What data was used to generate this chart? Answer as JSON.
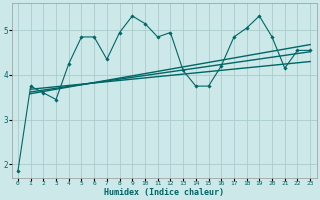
{
  "title": "",
  "xlabel": "Humidex (Indice chaleur)",
  "bg_color": "#cce8e8",
  "grid_color": "#aacccc",
  "line_color": "#006666",
  "xlim": [
    -0.5,
    23.5
  ],
  "ylim": [
    1.7,
    5.6
  ],
  "yticks": [
    2,
    3,
    4,
    5
  ],
  "xticks": [
    0,
    1,
    2,
    3,
    4,
    5,
    6,
    7,
    8,
    9,
    10,
    11,
    12,
    13,
    14,
    15,
    16,
    17,
    18,
    19,
    20,
    21,
    22,
    23
  ],
  "series1_x": [
    0,
    1,
    2,
    3,
    4,
    5,
    6,
    7,
    8,
    9,
    10,
    11,
    12,
    13,
    14,
    15,
    16,
    17,
    18,
    19,
    20,
    21,
    22,
    23
  ],
  "series1_y": [
    1.85,
    3.75,
    3.6,
    3.45,
    4.25,
    4.85,
    4.85,
    4.35,
    4.95,
    5.32,
    5.15,
    4.85,
    4.95,
    4.1,
    3.75,
    3.75,
    4.2,
    4.85,
    5.05,
    5.32,
    4.85,
    4.15,
    4.55,
    4.55
  ],
  "trend1_x": [
    1,
    23
  ],
  "trend1_y": [
    3.68,
    4.3
  ],
  "trend2_x": [
    1,
    23
  ],
  "trend2_y": [
    3.62,
    4.52
  ],
  "trend3_x": [
    1,
    23
  ],
  "trend3_y": [
    3.58,
    4.68
  ]
}
